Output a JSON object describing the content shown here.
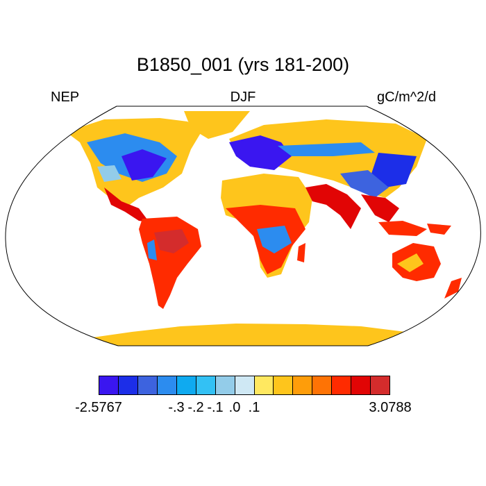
{
  "title": "B1850_001 (yrs 181-200)",
  "left_label": "NEP",
  "center_label": "DJF",
  "right_label": "gC/m^2/d",
  "colorbar": {
    "colors": [
      "#3a16f0",
      "#1c2ee8",
      "#3d63df",
      "#2c8cef",
      "#0faaf0",
      "#33c1f4",
      "#93cce9",
      "#cfe8f4",
      "#ffe860",
      "#fec51c",
      "#fe9d0a",
      "#fe7305",
      "#ff2b00",
      "#e10505",
      "#d42c2c"
    ],
    "labels": [
      "-2.5767",
      "-.3",
      "-.2",
      "-.1",
      ".0",
      ".1",
      "3.0788"
    ],
    "label_boundaries": [
      0,
      4,
      5,
      6,
      7,
      8,
      10
    ]
  }
}
